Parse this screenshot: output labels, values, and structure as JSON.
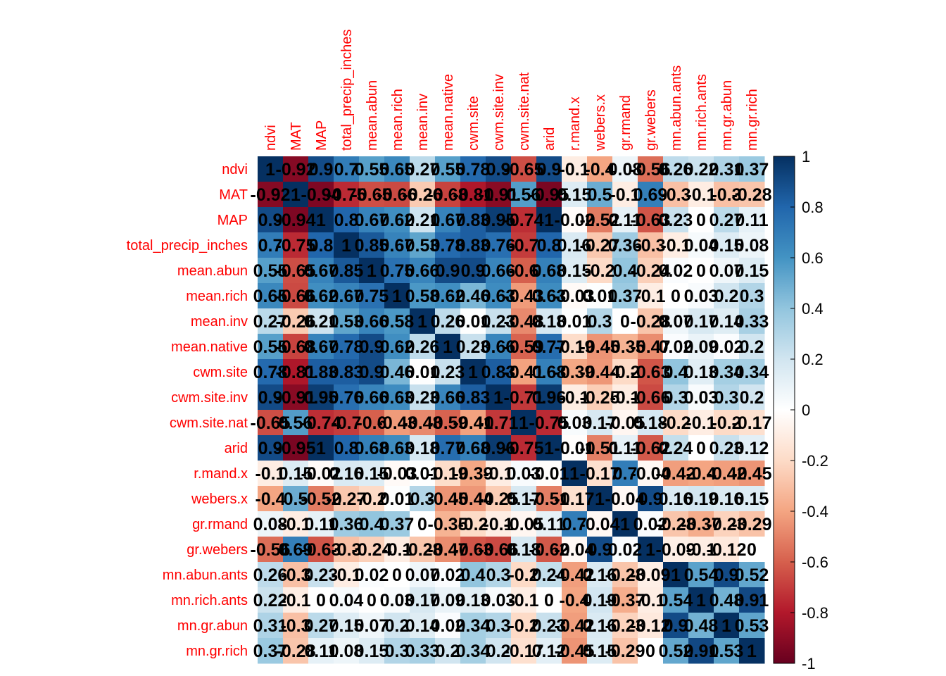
{
  "chart_data": {
    "type": "heatmap",
    "labels": [
      "ndvi",
      "MAT",
      "MAP",
      "total_precip_inches",
      "mean.abun",
      "mean.rich",
      "mean.inv",
      "mean.native",
      "cwm.site",
      "cwm.site.inv",
      "cwm.site.nat",
      "arid",
      "r.mand.x",
      "webers.x",
      "gr.rmand",
      "gr.webers",
      "mn.abun.ants",
      "mn.rich.ants",
      "mn.gr.abun",
      "mn.gr.rich"
    ],
    "matrix": [
      [
        1,
        -0.92,
        0.9,
        0.7,
        0.55,
        0.65,
        0.27,
        0.55,
        0.78,
        0.9,
        -0.65,
        0.9,
        -0.1,
        -0.4,
        0.08,
        -0.56,
        0.26,
        0.22,
        0.31,
        0.37
      ],
      [
        -0.92,
        1,
        -0.94,
        -0.75,
        -0.65,
        -0.66,
        -0.26,
        -0.68,
        -0.81,
        -0.91,
        0.56,
        -0.95,
        0.15,
        0.5,
        -0.1,
        0.69,
        -0.3,
        -0.1,
        -0.3,
        -0.28
      ],
      [
        0.9,
        -0.94,
        1,
        0.8,
        0.67,
        0.62,
        0.21,
        0.67,
        0.83,
        0.95,
        -0.74,
        1,
        -0.02,
        -0.52,
        0.11,
        -0.63,
        0.23,
        0.0,
        0.27,
        0.11
      ],
      [
        0.7,
        -0.75,
        0.8,
        1,
        0.85,
        0.67,
        0.53,
        0.78,
        0.83,
        0.76,
        -0.7,
        0.8,
        0.16,
        -0.27,
        0.36,
        -0.3,
        -0.1,
        0.04,
        0.15,
        0.08
      ],
      [
        0.55,
        -0.65,
        0.67,
        0.85,
        1,
        0.75,
        0.66,
        0.9,
        0.9,
        0.66,
        -0.6,
        0.68,
        0.15,
        -0.2,
        0.4,
        -0.24,
        0.02,
        0.0,
        0.07,
        0.15
      ],
      [
        0.65,
        -0.66,
        0.62,
        0.67,
        0.75,
        1,
        0.58,
        0.62,
        0.46,
        0.63,
        -0.43,
        0.63,
        -0.03,
        0.01,
        0.37,
        -0.1,
        0.0,
        0.03,
        0.2,
        0.3
      ],
      [
        0.27,
        -0.26,
        0.21,
        0.53,
        0.66,
        0.58,
        1,
        0.26,
        0.01,
        0.23,
        -0.48,
        0.18,
        0.01,
        0.3,
        0.0,
        -0.28,
        0.07,
        0.17,
        0.14,
        0.33
      ],
      [
        0.55,
        -0.68,
        0.67,
        0.78,
        0.9,
        0.62,
        0.26,
        1,
        0.23,
        0.66,
        -0.59,
        0.77,
        -0.19,
        -0.45,
        -0.35,
        -0.47,
        0.02,
        0.09,
        0.02,
        0.2
      ],
      [
        0.78,
        -0.81,
        0.83,
        0.83,
        0.9,
        0.46,
        0.01,
        0.23,
        1,
        0.83,
        -0.41,
        0.68,
        -0.39,
        -0.44,
        -0.2,
        -0.63,
        0.4,
        0.13,
        0.34,
        0.34
      ],
      [
        0.9,
        -0.91,
        0.95,
        0.76,
        0.66,
        0.63,
        0.23,
        0.66,
        0.83,
        1,
        -0.71,
        0.96,
        -0.1,
        -0.25,
        -0.1,
        -0.66,
        0.3,
        0.03,
        0.3,
        0.2
      ],
      [
        -0.65,
        0.56,
        -0.74,
        -0.7,
        -0.6,
        -0.43,
        -0.48,
        -0.59,
        -0.41,
        -0.71,
        1,
        -0.75,
        0.03,
        0.17,
        -0.05,
        0.18,
        -0.2,
        -0.1,
        -0.2,
        -0.17
      ],
      [
        0.9,
        -0.95,
        1,
        0.8,
        0.68,
        0.63,
        0.18,
        0.77,
        0.68,
        0.96,
        -0.75,
        1,
        -0.01,
        -0.51,
        0.11,
        -0.62,
        0.24,
        0.0,
        0.23,
        0.12
      ],
      [
        -0.1,
        0.15,
        -0.02,
        0.16,
        0.15,
        -0.03,
        0.01,
        -0.19,
        -0.39,
        -0.1,
        0.03,
        -0.01,
        1,
        -0.17,
        0.7,
        -0.04,
        -0.42,
        -0.4,
        -0.42,
        -0.45
      ],
      [
        -0.4,
        0.5,
        -0.52,
        -0.27,
        -0.2,
        0.01,
        0.3,
        -0.45,
        -0.44,
        -0.25,
        0.17,
        -0.51,
        -0.17,
        1,
        -0.04,
        0.9,
        0.16,
        0.19,
        0.16,
        0.15
      ],
      [
        0.08,
        -0.1,
        0.11,
        0.36,
        0.4,
        0.37,
        0.0,
        -0.35,
        -0.2,
        -0.1,
        -0.05,
        0.11,
        0.7,
        -0.04,
        1,
        0.02,
        -0.28,
        -0.37,
        -0.23,
        -0.29
      ],
      [
        -0.56,
        0.69,
        -0.63,
        -0.3,
        -0.24,
        -0.1,
        -0.28,
        -0.47,
        -0.63,
        -0.66,
        0.18,
        -0.62,
        -0.04,
        0.9,
        0.02,
        1,
        -0.09,
        -0.1,
        -0.12,
        0.0
      ],
      [
        0.26,
        -0.3,
        0.23,
        -0.1,
        0.02,
        0.0,
        0.07,
        0.02,
        0.4,
        0.3,
        -0.2,
        0.24,
        -0.42,
        0.16,
        -0.28,
        -0.09,
        1,
        0.54,
        0.9,
        0.52
      ],
      [
        0.22,
        -0.1,
        0.0,
        0.04,
        0.0,
        0.03,
        0.17,
        0.09,
        0.13,
        0.03,
        -0.1,
        0.0,
        -0.4,
        0.19,
        -0.37,
        -0.1,
        0.54,
        1,
        0.48,
        0.91
      ],
      [
        0.31,
        -0.3,
        0.27,
        0.15,
        0.07,
        0.2,
        0.14,
        0.02,
        0.34,
        0.3,
        -0.2,
        0.23,
        -0.42,
        0.16,
        -0.23,
        -0.12,
        0.9,
        0.48,
        1,
        0.53
      ],
      [
        0.37,
        -0.28,
        0.11,
        0.08,
        0.15,
        0.3,
        0.33,
        0.2,
        0.34,
        0.2,
        -0.17,
        0.12,
        -0.45,
        0.15,
        -0.29,
        0.0,
        0.52,
        0.91,
        0.53,
        1
      ]
    ],
    "colorbar": {
      "range": [
        -1,
        1
      ],
      "ticks": [
        "1",
        "0.8",
        "0.6",
        "0.4",
        "0.2",
        "0",
        "-0.2",
        "-0.4",
        "-0.6",
        "-0.8",
        "-1"
      ]
    },
    "palette": [
      "#67001f",
      "#b2182b",
      "#d6604d",
      "#f4a582",
      "#fddbc7",
      "#ffffff",
      "#d1e5f0",
      "#92c5de",
      "#4393c3",
      "#2166ac",
      "#053061"
    ],
    "label_color": "#ff0000",
    "text_color": "#000000",
    "grid": false
  }
}
